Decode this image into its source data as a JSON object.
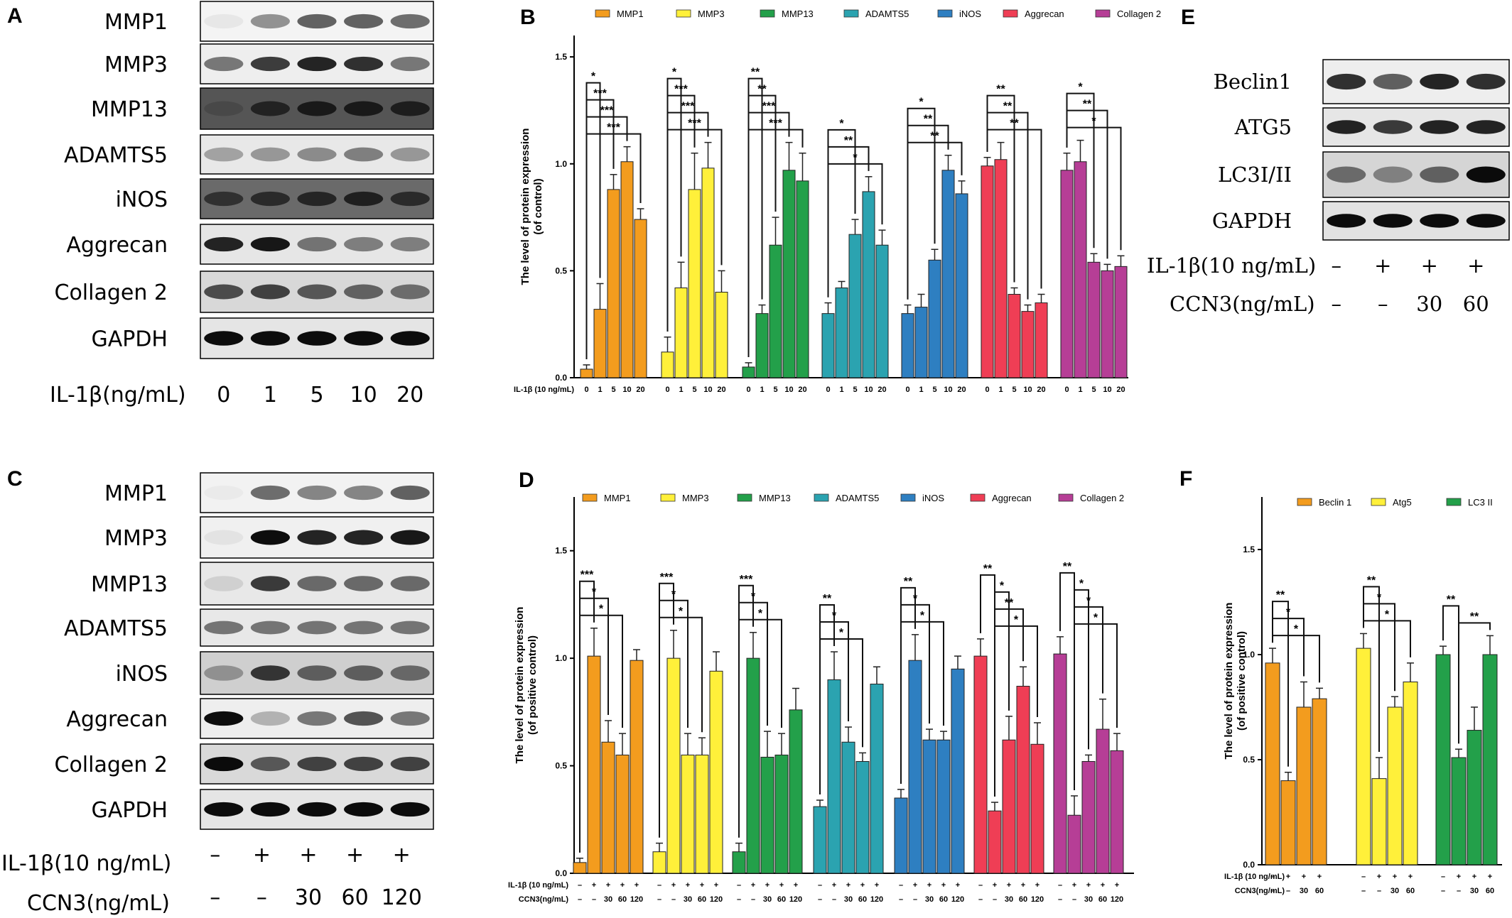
{
  "panels": {
    "A": {
      "letter": "A",
      "bands": [
        "MMP1",
        "MMP3",
        "MMP13",
        "ADAMTS5",
        "iNOS",
        "Aggrecan",
        "Collagen 2",
        "GAPDH"
      ],
      "treatment_label": "IL-1β(ng/mL)",
      "treatment_values": [
        "0",
        "1",
        "5",
        "10",
        "20"
      ]
    },
    "C": {
      "letter": "C",
      "bands": [
        "MMP1",
        "MMP3",
        "MMP13",
        "ADAMTS5",
        "iNOS",
        "Aggrecan",
        "Collagen 2",
        "GAPDH"
      ],
      "row1_label": "IL-1β(10 ng/mL)",
      "row1_values": [
        "–",
        "+",
        "+",
        "+",
        "+"
      ],
      "row2_label": "CCN3(ng/mL)",
      "row2_values": [
        "–",
        "–",
        "30",
        "60",
        "120"
      ]
    },
    "E": {
      "letter": "E",
      "bands": [
        "Beclin1",
        "ATG5",
        "LC3I/II",
        "GAPDH"
      ],
      "row1_label": "IL-1β(10 ng/mL)",
      "row1_values": [
        "–",
        "+",
        "+",
        "+"
      ],
      "row2_label": "CCN3(ng/mL)",
      "row2_values": [
        "–",
        "–",
        "30",
        "60"
      ]
    }
  },
  "chart_data": [
    {
      "panel": "B",
      "type": "bar",
      "ylabel": "The level of protein expression\n(of control)",
      "ylim": [
        0,
        1.6
      ],
      "yticks": [
        "0.0",
        "0.5",
        "1.0",
        "1.5"
      ],
      "xlabel_rows": [
        {
          "label": "IL-1β (10 ng/mL)",
          "values": [
            "0",
            "1",
            "5",
            "10",
            "20"
          ]
        }
      ],
      "series": [
        {
          "name": "MMP1",
          "color": "#F39C1E",
          "values": [
            0.04,
            0.32,
            0.88,
            1.01,
            0.74
          ],
          "errors": [
            0.02,
            0.12,
            0.07,
            0.07,
            0.05
          ],
          "sig": [
            {
              "to": 1,
              "label": "*"
            },
            {
              "to": 2,
              "label": "***"
            },
            {
              "to": 3,
              "label": "***"
            },
            {
              "to": 4,
              "label": "***"
            }
          ]
        },
        {
          "name": "MMP3",
          "color": "#FFF03A",
          "values": [
            0.12,
            0.42,
            0.88,
            0.98,
            0.4
          ],
          "errors": [
            0.07,
            0.12,
            0.17,
            0.12,
            0.1
          ],
          "sig": [
            {
              "to": 1,
              "label": "*"
            },
            {
              "to": 2,
              "label": "***"
            },
            {
              "to": 3,
              "label": "***"
            },
            {
              "to": 4,
              "label": "***"
            }
          ]
        },
        {
          "name": "MMP13",
          "color": "#23A04A",
          "values": [
            0.05,
            0.3,
            0.62,
            0.97,
            0.92
          ],
          "errors": [
            0.02,
            0.04,
            0.13,
            0.13,
            0.13
          ],
          "sig": [
            {
              "to": 1,
              "label": "**"
            },
            {
              "to": 2,
              "label": "**"
            },
            {
              "to": 3,
              "label": "***"
            },
            {
              "to": 4,
              "label": "***"
            }
          ]
        },
        {
          "name": "ADAMTS5",
          "color": "#2BA3B0",
          "values": [
            0.3,
            0.42,
            0.67,
            0.87,
            0.62
          ],
          "errors": [
            0.05,
            0.03,
            0.07,
            0.07,
            0.07
          ],
          "sig": [
            {
              "to": 2,
              "label": "*"
            },
            {
              "to": 3,
              "label": "**"
            },
            {
              "to": 4,
              "label": "*"
            }
          ]
        },
        {
          "name": "iNOS",
          "color": "#2E7FC1",
          "values": [
            0.3,
            0.33,
            0.55,
            0.97,
            0.86
          ],
          "errors": [
            0.04,
            0.06,
            0.05,
            0.07,
            0.06
          ],
          "sig": [
            {
              "to": 2,
              "label": "*"
            },
            {
              "to": 3,
              "label": "**"
            },
            {
              "to": 4,
              "label": "**"
            }
          ]
        },
        {
          "name": "Aggrecan",
          "color": "#EF3E55",
          "values": [
            0.99,
            1.02,
            0.39,
            0.31,
            0.35
          ],
          "errors": [
            0.04,
            0.08,
            0.03,
            0.03,
            0.04
          ],
          "sig": [
            {
              "to": 2,
              "label": "**"
            },
            {
              "to": 3,
              "label": "**"
            },
            {
              "to": 4,
              "label": "**"
            }
          ]
        },
        {
          "name": "Collagen 2",
          "color": "#B63E96",
          "values": [
            0.97,
            1.01,
            0.54,
            0.5,
            0.52
          ],
          "errors": [
            0.08,
            0.1,
            0.04,
            0.03,
            0.05
          ],
          "sig": [
            {
              "to": 2,
              "label": "*"
            },
            {
              "to": 3,
              "label": "**"
            },
            {
              "to": 4,
              "label": "*"
            }
          ]
        }
      ]
    },
    {
      "panel": "D",
      "type": "bar",
      "ylabel": "The level of protein expression\n(of positive control)",
      "ylim": [
        0,
        1.75
      ],
      "yticks": [
        "0.0",
        "0.5",
        "1.0",
        "1.5"
      ],
      "xlabel_rows": [
        {
          "label": "IL-1β (10 ng/mL)",
          "values": [
            "–",
            "+",
            "+",
            "+",
            "+"
          ]
        },
        {
          "label": "CCN3(ng/mL)",
          "values": [
            "–",
            "–",
            "30",
            "60",
            "120"
          ]
        }
      ],
      "series": [
        {
          "name": "MMP1",
          "color": "#F39C1E",
          "values": [
            0.05,
            1.01,
            0.61,
            0.55,
            0.99
          ],
          "errors": [
            0.02,
            0.13,
            0.1,
            0.1,
            0.05
          ],
          "sig": [
            {
              "to": 1,
              "label": "***"
            },
            {
              "to": 2,
              "label": "*"
            },
            {
              "to": 3,
              "label": "*"
            }
          ]
        },
        {
          "name": "MMP3",
          "color": "#FFF03A",
          "values": [
            0.1,
            1.0,
            0.55,
            0.55,
            0.94
          ],
          "errors": [
            0.04,
            0.13,
            0.1,
            0.08,
            0.09
          ],
          "sig": [
            {
              "to": 1,
              "label": "***"
            },
            {
              "to": 2,
              "label": "*"
            },
            {
              "to": 3,
              "label": "*"
            }
          ]
        },
        {
          "name": "MMP13",
          "color": "#23A04A",
          "values": [
            0.1,
            1.0,
            0.54,
            0.55,
            0.76
          ],
          "errors": [
            0.04,
            0.12,
            0.12,
            0.1,
            0.1
          ],
          "sig": [
            {
              "to": 1,
              "label": "***"
            },
            {
              "to": 2,
              "label": "*"
            },
            {
              "to": 3,
              "label": "*"
            }
          ]
        },
        {
          "name": "ADAMTS5",
          "color": "#2BA3B0",
          "values": [
            0.31,
            0.9,
            0.61,
            0.52,
            0.88
          ],
          "errors": [
            0.03,
            0.13,
            0.07,
            0.04,
            0.08
          ],
          "sig": [
            {
              "to": 1,
              "label": "**"
            },
            {
              "to": 2,
              "label": "*"
            },
            {
              "to": 3,
              "label": "*"
            }
          ]
        },
        {
          "name": "iNOS",
          "color": "#2E7FC1",
          "values": [
            0.35,
            0.99,
            0.62,
            0.62,
            0.95
          ],
          "errors": [
            0.04,
            0.12,
            0.05,
            0.04,
            0.06
          ],
          "sig": [
            {
              "to": 1,
              "label": "**"
            },
            {
              "to": 2,
              "label": "*"
            },
            {
              "to": 3,
              "label": "*"
            }
          ]
        },
        {
          "name": "Aggrecan",
          "color": "#EF3E55",
          "values": [
            1.01,
            0.29,
            0.62,
            0.87,
            0.6
          ],
          "errors": [
            0.08,
            0.04,
            0.11,
            0.09,
            0.1
          ],
          "sig": [
            {
              "from": 0,
              "to": 1,
              "label": "**"
            },
            {
              "from": 1,
              "to": 2,
              "label": "*"
            },
            {
              "from": 1,
              "to": 3,
              "label": "**"
            },
            {
              "from": 1,
              "to": 4,
              "label": "*"
            }
          ]
        },
        {
          "name": "Collagen 2",
          "color": "#B63E96",
          "values": [
            1.02,
            0.27,
            0.52,
            0.67,
            0.57
          ],
          "errors": [
            0.08,
            0.09,
            0.03,
            0.14,
            0.08
          ],
          "sig": [
            {
              "from": 0,
              "to": 1,
              "label": "**"
            },
            {
              "from": 1,
              "to": 2,
              "label": "*"
            },
            {
              "from": 1,
              "to": 3,
              "label": "*"
            },
            {
              "from": 1,
              "to": 4,
              "label": "*"
            }
          ]
        }
      ]
    },
    {
      "panel": "F",
      "type": "bar",
      "ylabel": "The level of protein expression\n(of positive control)",
      "ylim": [
        0,
        1.75
      ],
      "yticks": [
        "0.0",
        "0.5",
        "1.0",
        "1.5"
      ],
      "xlabel_rows": [
        {
          "label": "IL-1β (10 ng/mL)",
          "values": [
            "–",
            "+",
            "+",
            "+"
          ]
        },
        {
          "label": "CCN3(ng/mL)",
          "values": [
            "–",
            "–",
            "30",
            "60"
          ]
        }
      ],
      "series": [
        {
          "name": "Beclin 1",
          "color": "#F39C1E",
          "values": [
            0.96,
            0.4,
            0.75,
            0.79
          ],
          "errors": [
            0.07,
            0.04,
            0.12,
            0.05
          ],
          "sig": [
            {
              "to": 1,
              "label": "**"
            },
            {
              "to": 2,
              "label": "*"
            },
            {
              "to": 3,
              "label": "*"
            }
          ]
        },
        {
          "name": "Atg5",
          "color": "#FFF03A",
          "values": [
            1.03,
            0.41,
            0.75,
            0.87
          ],
          "errors": [
            0.07,
            0.1,
            0.05,
            0.09
          ],
          "sig": [
            {
              "to": 1,
              "label": "**"
            },
            {
              "to": 2,
              "label": "*"
            },
            {
              "to": 3,
              "label": "*"
            }
          ]
        },
        {
          "name": "LC3 II",
          "color": "#23A04A",
          "values": [
            1.0,
            0.51,
            0.64,
            1.0
          ],
          "errors": [
            0.04,
            0.04,
            0.11,
            0.09
          ],
          "sig": [
            {
              "to": 1,
              "label": "**"
            },
            {
              "from": 1,
              "to": 3,
              "label": "**"
            }
          ]
        }
      ]
    }
  ]
}
